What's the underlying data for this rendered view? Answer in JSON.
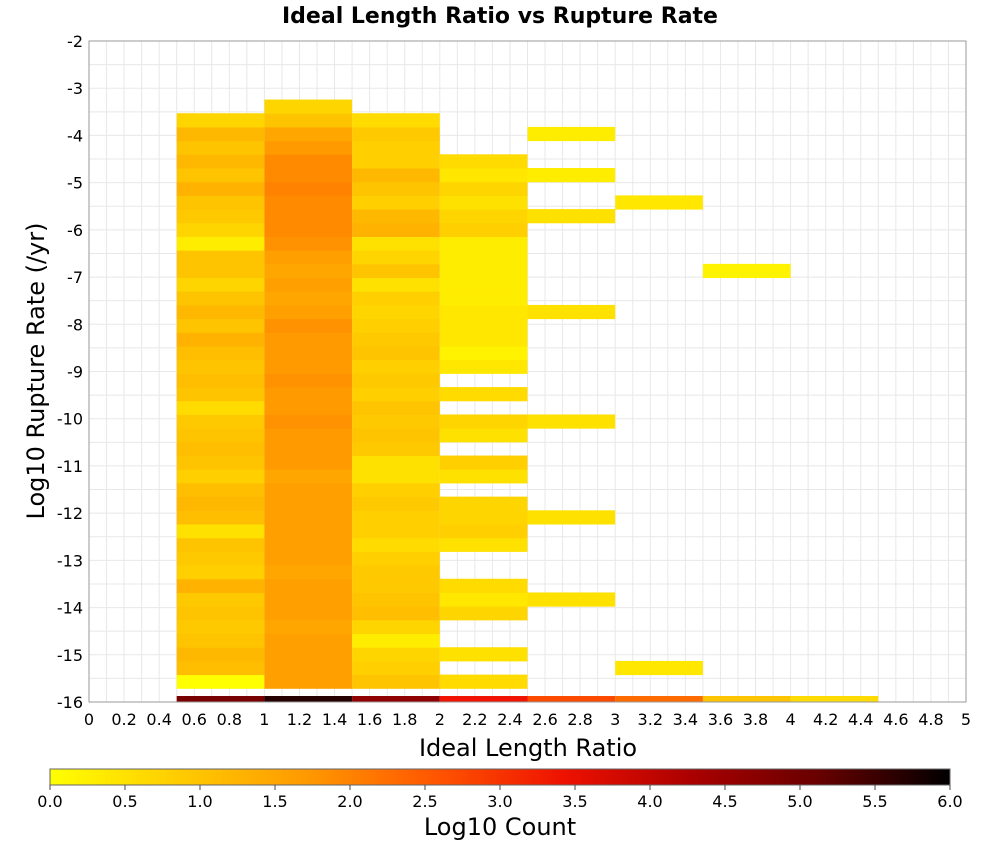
{
  "chart_data": {
    "type": "heatmap",
    "title": "Ideal Length Ratio vs Rupture Rate",
    "xlabel": "Ideal Length Ratio",
    "ylabel": "Log10 Rupture Rate (/yr)",
    "colorbar_label": "Log10 Count",
    "xlim": [
      0,
      5
    ],
    "ylim": [
      -16,
      -2
    ],
    "x_ticks": [
      "0",
      "0.2",
      "0.4",
      "0.6",
      "0.8",
      "1",
      "1.2",
      "1.4",
      "1.6",
      "1.8",
      "2",
      "2.2",
      "2.4",
      "2.6",
      "2.8",
      "3",
      "3.2",
      "3.4",
      "3.6",
      "3.8",
      "4",
      "4.2",
      "4.4",
      "4.6",
      "4.8",
      "5"
    ],
    "y_ticks": [
      "-2",
      "-3",
      "-4",
      "-5",
      "-6",
      "-7",
      "-8",
      "-9",
      "-10",
      "-11",
      "-12",
      "-13",
      "-14",
      "-15",
      "-16"
    ],
    "colorbar_ticks": [
      "0.0",
      "0.5",
      "1.0",
      "1.5",
      "2.0",
      "2.5",
      "3.0",
      "3.5",
      "4.0",
      "4.5",
      "5.0",
      "5.5",
      "6.0"
    ],
    "color_range": [
      0,
      6
    ],
    "colormap": [
      "#ffff00",
      "#ffcc00",
      "#ff9900",
      "#ff5500",
      "#ee1100",
      "#aa0000",
      "#660000",
      "#000000"
    ],
    "x_bin_width": 0.5,
    "y_bin_height": 0.29,
    "columns": [
      {
        "x": 0.5,
        "cells": [
          [
            -16,
            0
          ],
          [
            -15.71,
            0
          ],
          [
            -15.42,
            1.1
          ],
          [
            -15.13,
            1.2
          ],
          [
            -14.84,
            1.0
          ],
          [
            -14.55,
            0.9
          ],
          [
            -14.26,
            1.0
          ],
          [
            -13.97,
            0.9
          ],
          [
            -13.68,
            1.3
          ],
          [
            -13.39,
            0.8
          ],
          [
            -13.1,
            0.9
          ],
          [
            -12.81,
            1.0
          ],
          [
            -12.52,
            0.5
          ],
          [
            -12.23,
            1.1
          ],
          [
            -11.94,
            1.2
          ],
          [
            -11.65,
            1.1
          ],
          [
            -11.36,
            0.8
          ],
          [
            -11.07,
            1.0
          ],
          [
            -10.78,
            1.1
          ],
          [
            -10.49,
            1.0
          ],
          [
            -10.2,
            0.9
          ],
          [
            -9.91,
            0.6
          ],
          [
            -9.62,
            1.0
          ],
          [
            -9.33,
            1.1
          ],
          [
            -9.04,
            1.0
          ],
          [
            -8.75,
            1.1
          ],
          [
            -8.46,
            1.3
          ],
          [
            -8.17,
            1.0
          ],
          [
            -7.88,
            1.2
          ],
          [
            -7.59,
            1.0
          ],
          [
            -7.3,
            0.7
          ],
          [
            -7.01,
            1.0
          ],
          [
            -6.72,
            1.0
          ],
          [
            -6.43,
            0.3
          ],
          [
            -6.14,
            0.7
          ],
          [
            -5.85,
            0.9
          ],
          [
            -5.56,
            1.0
          ],
          [
            -5.27,
            1.3
          ],
          [
            -4.98,
            1.0
          ],
          [
            -4.69,
            1.2
          ],
          [
            -4.4,
            1.0
          ],
          [
            -4.11,
            1.2
          ],
          [
            -3.82,
            0.7
          ]
        ]
      },
      {
        "x": 1.0,
        "cells": [
          [
            -16,
            0
          ],
          [
            -15.71,
            1.6
          ],
          [
            -15.42,
            1.6
          ],
          [
            -15.13,
            1.6
          ],
          [
            -14.84,
            1.6
          ],
          [
            -14.55,
            1.5
          ],
          [
            -14.26,
            1.6
          ],
          [
            -13.97,
            1.6
          ],
          [
            -13.68,
            1.6
          ],
          [
            -13.39,
            1.5
          ],
          [
            -13.1,
            1.6
          ],
          [
            -12.81,
            1.6
          ],
          [
            -12.52,
            1.6
          ],
          [
            -12.23,
            1.6
          ],
          [
            -11.94,
            1.6
          ],
          [
            -11.65,
            1.6
          ],
          [
            -11.36,
            1.5
          ],
          [
            -11.07,
            1.7
          ],
          [
            -10.78,
            1.7
          ],
          [
            -10.49,
            1.7
          ],
          [
            -10.2,
            1.8
          ],
          [
            -9.91,
            1.7
          ],
          [
            -9.62,
            1.7
          ],
          [
            -9.33,
            1.8
          ],
          [
            -9.04,
            1.7
          ],
          [
            -8.75,
            1.7
          ],
          [
            -8.46,
            1.7
          ],
          [
            -8.17,
            1.8
          ],
          [
            -7.88,
            1.6
          ],
          [
            -7.59,
            1.5
          ],
          [
            -7.3,
            1.6
          ],
          [
            -7.01,
            1.5
          ],
          [
            -6.72,
            1.6
          ],
          [
            -6.43,
            1.8
          ],
          [
            -6.14,
            1.9
          ],
          [
            -5.85,
            1.9
          ],
          [
            -5.56,
            1.9
          ],
          [
            -5.27,
            2.0
          ],
          [
            -4.98,
            1.9
          ],
          [
            -4.69,
            1.9
          ],
          [
            -4.4,
            1.7
          ],
          [
            -4.11,
            1.5
          ],
          [
            -3.82,
            1.0
          ],
          [
            -3.53,
            0.7
          ]
        ]
      },
      {
        "x": 1.5,
        "cells": [
          [
            -16,
            0
          ],
          [
            -15.71,
            1.0
          ],
          [
            -15.42,
            0.8
          ],
          [
            -15.13,
            0.7
          ],
          [
            -14.84,
            0.3
          ],
          [
            -14.55,
            0.7
          ],
          [
            -14.26,
            1.1
          ],
          [
            -13.97,
            1.0
          ],
          [
            -13.68,
            0.9
          ],
          [
            -13.39,
            0.9
          ],
          [
            -13.1,
            0.8
          ],
          [
            -12.81,
            0.6
          ],
          [
            -12.52,
            0.8
          ],
          [
            -12.23,
            0.8
          ],
          [
            -11.94,
            0.9
          ],
          [
            -11.65,
            0.8
          ],
          [
            -11.36,
            0.5
          ],
          [
            -11.07,
            0.5
          ],
          [
            -10.78,
            0.9
          ],
          [
            -10.49,
            1.0
          ],
          [
            -10.2,
            0.9
          ],
          [
            -9.91,
            1.0
          ],
          [
            -9.62,
            0.8
          ],
          [
            -9.33,
            0.9
          ],
          [
            -9.04,
            0.8
          ],
          [
            -8.75,
            1.0
          ],
          [
            -8.46,
            0.9
          ],
          [
            -8.17,
            0.8
          ],
          [
            -7.88,
            0.7
          ],
          [
            -7.59,
            0.8
          ],
          [
            -7.3,
            0.5
          ],
          [
            -7.01,
            1.0
          ],
          [
            -6.72,
            0.7
          ],
          [
            -6.43,
            0.5
          ],
          [
            -6.14,
            1.3
          ],
          [
            -5.85,
            1.2
          ],
          [
            -5.56,
            0.8
          ],
          [
            -5.27,
            1.0
          ],
          [
            -4.98,
            1.2
          ],
          [
            -4.69,
            0.8
          ],
          [
            -4.4,
            0.8
          ],
          [
            -4.11,
            0.9
          ],
          [
            -3.82,
            0.6
          ]
        ]
      },
      {
        "x": 2.0,
        "cells": [
          [
            -16,
            0
          ],
          [
            -15.71,
            0.6
          ],
          [
            -15.13,
            0.5
          ],
          [
            -14.26,
            0.7
          ],
          [
            -13.97,
            0.4
          ],
          [
            -13.68,
            0.6
          ],
          [
            -12.81,
            0.5
          ],
          [
            -12.52,
            0.8
          ],
          [
            -12.23,
            0.7
          ],
          [
            -11.94,
            0.7
          ],
          [
            -11.36,
            0.5
          ],
          [
            -11.07,
            0.8
          ],
          [
            -10.49,
            0.5
          ],
          [
            -10.2,
            0.7
          ],
          [
            -9.62,
            0.6
          ],
          [
            -9.04,
            0.4
          ],
          [
            -8.75,
            0.2
          ],
          [
            -8.46,
            0.4
          ],
          [
            -8.17,
            0.4
          ],
          [
            -7.88,
            0.4
          ],
          [
            -7.59,
            0.3
          ],
          [
            -7.3,
            0.3
          ],
          [
            -7.01,
            0.3
          ],
          [
            -6.72,
            0.3
          ],
          [
            -6.43,
            0.3
          ],
          [
            -6.14,
            0.8
          ],
          [
            -5.85,
            0.7
          ],
          [
            -5.56,
            0.5
          ],
          [
            -5.27,
            0.7
          ],
          [
            -4.98,
            0.4
          ],
          [
            -4.69,
            0.6
          ]
        ]
      },
      {
        "x": 2.5,
        "cells": [
          [
            -16,
            0
          ],
          [
            -13.97,
            0.5
          ],
          [
            -12.23,
            0.5
          ],
          [
            -10.2,
            0.5
          ],
          [
            -7.88,
            0.5
          ],
          [
            -5.85,
            0.5
          ],
          [
            -4.98,
            0.3
          ],
          [
            -4.11,
            0.3
          ]
        ]
      },
      {
        "x": 3.0,
        "cells": [
          [
            -16,
            0
          ],
          [
            -15.42,
            0.4
          ],
          [
            -5.56,
            0.4
          ]
        ]
      },
      {
        "x": 3.5,
        "cells": [
          [
            -16,
            0
          ],
          [
            -7.01,
            0.2
          ]
        ]
      },
      {
        "x": 4.0,
        "cells": [
          [
            -16,
            0
          ]
        ]
      }
    ],
    "bottom_row": {
      "y": -16,
      "values": [
        4.9,
        5.7,
        4.6,
        3.4,
        2.7,
        2.3,
        1.0,
        0.6
      ],
      "x_start": [
        0.5,
        1.0,
        1.5,
        2.0,
        2.5,
        3.0,
        3.5,
        4.0
      ]
    }
  }
}
